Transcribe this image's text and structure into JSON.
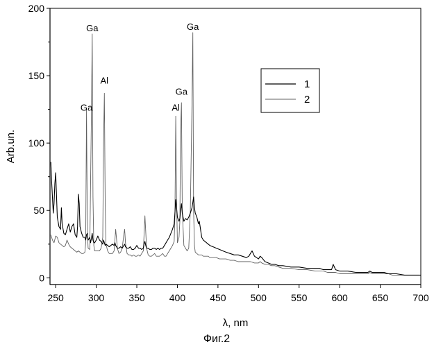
{
  "chart_data": {
    "type": "line",
    "title": "",
    "xlabel": "λ, nm",
    "ylabel": "Arb.un.",
    "xlim": [
      243,
      700
    ],
    "ylim": [
      -5,
      200
    ],
    "xticks": [
      250,
      300,
      350,
      400,
      450,
      500,
      550,
      600,
      650,
      700
    ],
    "yticks": [
      0,
      50,
      100,
      150,
      200
    ],
    "grid": false,
    "legend_position": "top-right",
    "caption": "Фиг.2",
    "series": [
      {
        "name": "1",
        "color": "#000000",
        "x": [
          244,
          245,
          246,
          247,
          248,
          249,
          250,
          251,
          252,
          254,
          256,
          257,
          258,
          260,
          262,
          264,
          266,
          268,
          270,
          272,
          274,
          276,
          277,
          278,
          279,
          280,
          282,
          284,
          286,
          287,
          288,
          289,
          290,
          292,
          293,
          294,
          295,
          296,
          297,
          298,
          300,
          302,
          304,
          306,
          308,
          309,
          310,
          311,
          312,
          314,
          316,
          318,
          320,
          322,
          323,
          324,
          326,
          328,
          330,
          332,
          334,
          335,
          336,
          338,
          340,
          342,
          344,
          346,
          348,
          350,
          352,
          354,
          356,
          358,
          359,
          360,
          361,
          362,
          364,
          366,
          368,
          370,
          372,
          374,
          376,
          378,
          380,
          382,
          384,
          386,
          388,
          390,
          392,
          394,
          396,
          397,
          398,
          399,
          400,
          402,
          403,
          404,
          405,
          406,
          408,
          410,
          412,
          414,
          416,
          418,
          419,
          420,
          421,
          422,
          424,
          426,
          427,
          428,
          430,
          432,
          434,
          436,
          438,
          440,
          444,
          448,
          452,
          456,
          460,
          465,
          470,
          475,
          480,
          485,
          488,
          490,
          492,
          495,
          500,
          502,
          504,
          508,
          512,
          516,
          520,
          525,
          530,
          540,
          550,
          560,
          570,
          575,
          580,
          585,
          590,
          592,
          595,
          600,
          610,
          620,
          630,
          635,
          637,
          640,
          645,
          650,
          655,
          660,
          665,
          670,
          680,
          690,
          700
        ],
        "y": [
          86,
          72,
          60,
          48,
          55,
          70,
          78,
          62,
          45,
          38,
          36,
          52,
          40,
          33,
          32,
          36,
          40,
          34,
          38,
          40,
          32,
          30,
          38,
          62,
          55,
          38,
          33,
          30,
          30,
          28,
          32,
          33,
          28,
          30,
          26,
          29,
          33,
          28,
          26,
          26,
          28,
          31,
          28,
          27,
          25,
          28,
          26,
          24,
          25,
          24,
          23,
          24,
          25,
          24,
          26,
          24,
          22,
          22,
          23,
          22,
          24,
          25,
          23,
          22,
          22,
          23,
          21,
          21,
          22,
          24,
          22,
          22,
          21,
          22,
          25,
          27,
          24,
          22,
          22,
          21,
          21,
          22,
          22,
          21,
          22,
          21,
          22,
          22,
          24,
          26,
          28,
          30,
          33,
          36,
          40,
          48,
          58,
          52,
          45,
          42,
          44,
          50,
          55,
          48,
          42,
          44,
          43,
          45,
          48,
          52,
          56,
          60,
          52,
          48,
          45,
          40,
          42,
          38,
          30,
          28,
          27,
          26,
          25,
          24,
          23,
          22,
          21,
          20,
          19,
          18,
          17,
          17,
          16,
          15,
          16,
          18,
          20,
          16,
          14,
          16,
          15,
          12,
          11,
          10,
          10,
          9,
          9,
          8,
          8,
          7,
          7,
          7,
          6,
          6,
          6,
          10,
          6,
          5,
          5,
          4,
          4,
          4,
          5,
          4,
          4,
          4,
          4,
          3,
          3,
          3,
          2,
          2,
          2
        ]
      },
      {
        "name": "2",
        "color": "#606060",
        "x": [
          244,
          246,
          248,
          250,
          252,
          254,
          256,
          258,
          260,
          262,
          264,
          266,
          268,
          270,
          272,
          274,
          276,
          278,
          280,
          282,
          284,
          286,
          287,
          288,
          289,
          290,
          292,
          294,
          295,
          296,
          297,
          298,
          300,
          302,
          304,
          306,
          308,
          309,
          310,
          311,
          312,
          314,
          316,
          318,
          320,
          322,
          323,
          324,
          326,
          328,
          330,
          332,
          334,
          335,
          336,
          338,
          340,
          342,
          344,
          346,
          348,
          350,
          352,
          354,
          356,
          358,
          360,
          362,
          364,
          366,
          368,
          370,
          372,
          374,
          376,
          378,
          380,
          382,
          384,
          386,
          388,
          390,
          392,
          394,
          396,
          397,
          398,
          399,
          400,
          402,
          403,
          404,
          405,
          406,
          408,
          410,
          412,
          414,
          416,
          418,
          419,
          420,
          421,
          422,
          424,
          426,
          428,
          430,
          432,
          434,
          436,
          438,
          440,
          444,
          448,
          452,
          456,
          460,
          465,
          470,
          475,
          480,
          485,
          488,
          490,
          495,
          500,
          502,
          504,
          508,
          512,
          516,
          520,
          525,
          530,
          540,
          550,
          560,
          570,
          575,
          580,
          585,
          590,
          592,
          595,
          600,
          610,
          620,
          630,
          635,
          637,
          640,
          645,
          650,
          655,
          660,
          665,
          670,
          680,
          690,
          700
        ],
        "y": [
          32,
          28,
          26,
          31,
          30,
          26,
          25,
          24,
          23,
          24,
          28,
          25,
          23,
          22,
          21,
          20,
          19,
          20,
          19,
          18,
          18,
          19,
          26,
          125,
          35,
          22,
          21,
          120,
          181,
          60,
          24,
          20,
          20,
          20,
          20,
          22,
          30,
          100,
          137,
          55,
          25,
          20,
          18,
          18,
          18,
          20,
          28,
          36,
          22,
          18,
          19,
          22,
          32,
          36,
          26,
          18,
          17,
          17,
          16,
          17,
          16,
          16,
          17,
          16,
          18,
          20,
          46,
          22,
          17,
          16,
          16,
          17,
          18,
          16,
          16,
          16,
          17,
          18,
          16,
          16,
          18,
          20,
          22,
          24,
          27,
          45,
          120,
          58,
          26,
          30,
          42,
          110,
          130,
          50,
          24,
          22,
          20,
          22,
          50,
          130,
          182,
          50,
          24,
          19,
          18,
          17,
          17,
          17,
          16,
          16,
          16,
          16,
          15,
          15,
          15,
          14,
          14,
          14,
          13,
          13,
          12,
          12,
          12,
          12,
          12,
          11,
          11,
          12,
          11,
          10,
          10,
          9,
          9,
          8,
          7,
          7,
          6,
          6,
          5,
          5,
          5,
          4,
          4,
          4,
          4,
          3,
          3,
          3,
          3,
          3,
          4,
          3,
          3,
          3,
          3,
          3,
          2,
          2,
          2,
          2,
          2
        ]
      }
    ],
    "annotations": [
      {
        "text": "Ga",
        "x": 288,
        "y": 124
      },
      {
        "text": "Ga",
        "x": 295,
        "y": 183
      },
      {
        "text": "Al",
        "x": 310,
        "y": 144
      },
      {
        "text": "Al",
        "x": 398,
        "y": 124
      },
      {
        "text": "Ga",
        "x": 405,
        "y": 136
      },
      {
        "text": "Ga",
        "x": 419,
        "y": 184
      }
    ]
  }
}
